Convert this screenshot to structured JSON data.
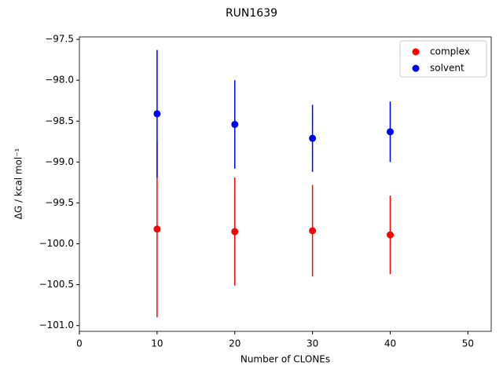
{
  "chart_data": {
    "type": "scatter",
    "title": "RUN1639",
    "x_label": "Number of CLONEs",
    "y_label": "ΔG / kcal mol⁻¹",
    "x": [
      10,
      20,
      30,
      40
    ],
    "series": [
      {
        "name": "complex",
        "color": "#ff0000",
        "values": [
          -99.82,
          -99.85,
          -99.84,
          -99.89
        ],
        "errors": [
          1.08,
          0.66,
          0.56,
          0.48
        ]
      },
      {
        "name": "solvent",
        "color": "#0000ff",
        "values": [
          -98.41,
          -98.54,
          -98.71,
          -98.63
        ],
        "errors": [
          0.78,
          0.54,
          0.41,
          0.37
        ]
      }
    ],
    "xlim": [
      0,
      53
    ],
    "xticks": [
      0,
      10,
      20,
      30,
      40,
      50
    ],
    "ylim": [
      -101.07,
      -97.47
    ],
    "yticks": [
      {
        "value": -101.0,
        "label": "−101.0"
      },
      {
        "value": -100.5,
        "label": "−100.5"
      },
      {
        "value": -100.0,
        "label": "−100.0"
      },
      {
        "value": -99.5,
        "label": "−99.5"
      },
      {
        "value": -99.0,
        "label": "−99.0"
      },
      {
        "value": -98.5,
        "label": "−98.5"
      },
      {
        "value": -98.0,
        "label": "−98.0"
      },
      {
        "value": -97.5,
        "label": "−97.5"
      }
    ],
    "legend": "upper right",
    "grid": false
  }
}
